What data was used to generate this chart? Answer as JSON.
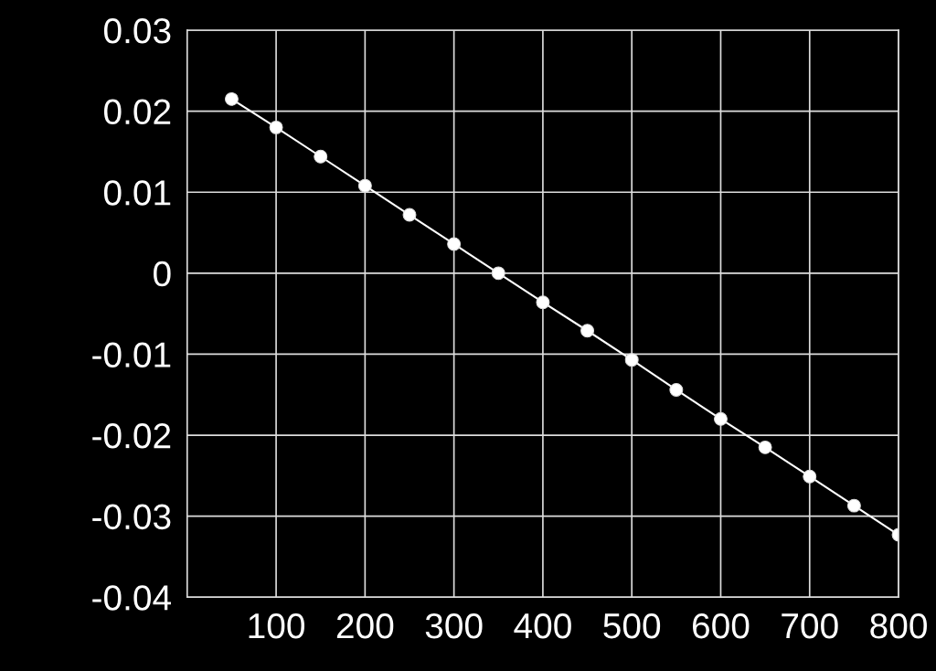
{
  "chart_data": {
    "type": "line",
    "x": [
      50,
      100,
      150,
      200,
      250,
      300,
      350,
      400,
      450,
      500,
      550,
      600,
      650,
      700,
      750,
      800
    ],
    "series": [
      {
        "color": "#ffffff",
        "values": [
          0.0215,
          0.018,
          0.0144,
          0.0108,
          0.0072,
          0.0036,
          0.0,
          -0.0036,
          -0.0071,
          -0.0107,
          -0.0144,
          -0.018,
          -0.0215,
          -0.0251,
          -0.0287,
          -0.0323
        ]
      }
    ],
    "xlim": [
      0,
      800
    ],
    "xticks": [
      100,
      200,
      300,
      400,
      500,
      600,
      700,
      800
    ],
    "ylim": [
      -0.04,
      0.03
    ],
    "yticks": [
      {
        "value": -0.04,
        "label": "-0.04"
      },
      {
        "value": -0.03,
        "label": "-0.03"
      },
      {
        "value": -0.02,
        "label": "-0.02"
      },
      {
        "value": -0.01,
        "label": "-0.01"
      },
      {
        "value": 0,
        "label": "0"
      },
      {
        "value": 0.01,
        "label": "0.01"
      },
      {
        "value": 0.02,
        "label": "0.02"
      },
      {
        "value": 0.03,
        "label": "0.03"
      }
    ],
    "grid": true,
    "marker": "circle",
    "line_style": "solid"
  }
}
